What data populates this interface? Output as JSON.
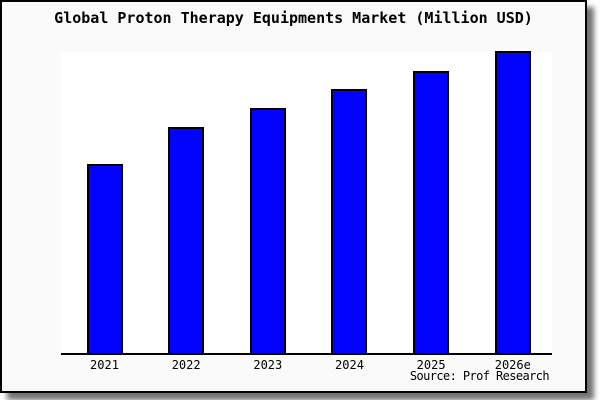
{
  "title": "Global Proton Therapy Equipments Market (Million USD)",
  "source": "Source: Prof Research",
  "colors": {
    "bar_fill": "#0101ff",
    "bar_border": "#000000",
    "card_background": "#fafafa",
    "plot_background": "#ffffff",
    "axis": "#000000",
    "frame_border": "#000000"
  },
  "chart_data": {
    "type": "bar",
    "title": "Global Proton Therapy Equipments Market (Million USD)",
    "categories": [
      "2021",
      "2022",
      "2023",
      "2024",
      "2025",
      "2026e"
    ],
    "values": [
      62.6,
      74.8,
      81.1,
      87.4,
      93.4,
      100
    ],
    "value_scale": "relative percent of tallest bar (y-axis has no tick labels)",
    "unit": "Million USD",
    "xlabel": "",
    "ylabel": "",
    "grid": false,
    "legend": false,
    "annotations": [
      "Source: Prof Research"
    ]
  }
}
